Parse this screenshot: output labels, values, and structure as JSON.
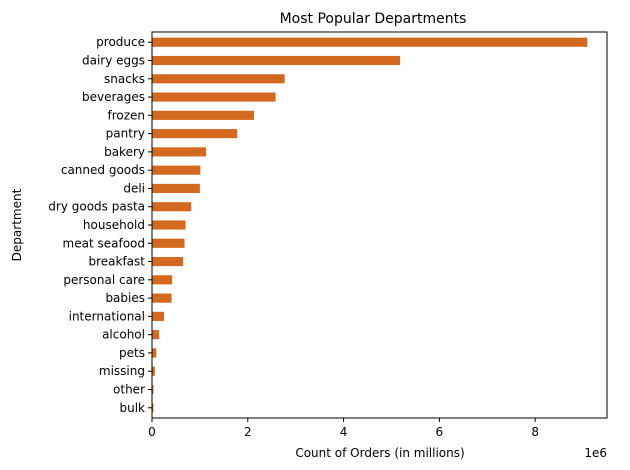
{
  "chart_data": {
    "type": "bar",
    "orientation": "horizontal",
    "title": "Most Popular Departments",
    "xlabel": "Count of Orders (in millions)",
    "ylabel": "Department",
    "x_offset_text": "1e6",
    "xlim": [
      0,
      9.5
    ],
    "x_ticks": [
      0,
      2,
      4,
      6,
      8
    ],
    "x_tick_labels": [
      "0",
      "2",
      "4",
      "6",
      "8"
    ],
    "grid": false,
    "legend": "none",
    "bar_color": "#D2691E",
    "categories": [
      "produce",
      "dairy eggs",
      "snacks",
      "beverages",
      "frozen",
      "pantry",
      "bakery",
      "canned goods",
      "deli",
      "dry goods pasta",
      "household",
      "meat seafood",
      "breakfast",
      "personal care",
      "babies",
      "international",
      "alcohol",
      "pets",
      "missing",
      "other",
      "bulk"
    ],
    "values": [
      9.09,
      5.18,
      2.77,
      2.58,
      2.13,
      1.78,
      1.13,
      1.01,
      1.0,
      0.82,
      0.7,
      0.68,
      0.65,
      0.42,
      0.41,
      0.25,
      0.15,
      0.09,
      0.06,
      0.03,
      0.03
    ]
  }
}
